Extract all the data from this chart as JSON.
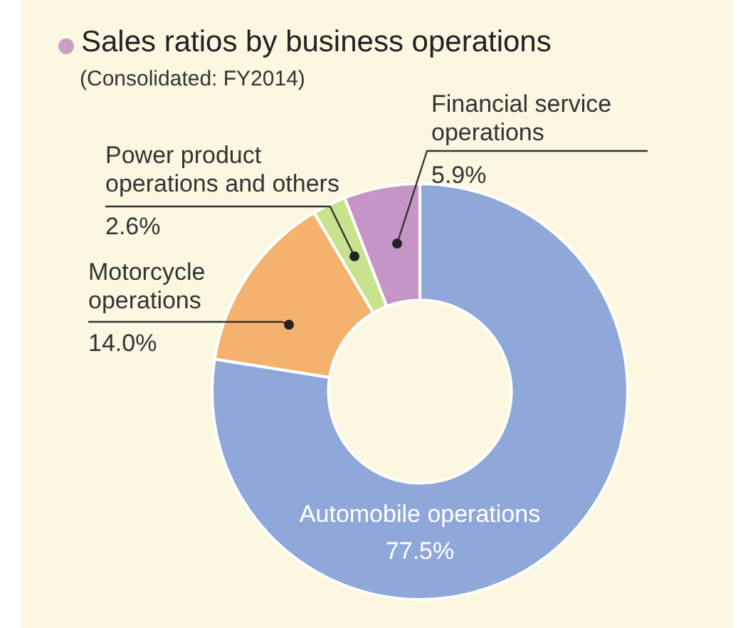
{
  "chart_data": {
    "type": "donut",
    "title": "Sales ratios by business operations",
    "subtitle": "(Consolidated: FY2014)",
    "categories": [
      "Automobile operations",
      "Motorcycle operations",
      "Power product operations and others",
      "Financial service operations"
    ],
    "values": [
      77.5,
      14.0,
      2.6,
      5.9
    ],
    "colors": [
      "#8fa8d9",
      "#f5b26e",
      "#c9e28e",
      "#c495c6"
    ],
    "value_labels": [
      "77.5%",
      "14.0%",
      "2.6%",
      "5.9%"
    ],
    "legend": false
  }
}
